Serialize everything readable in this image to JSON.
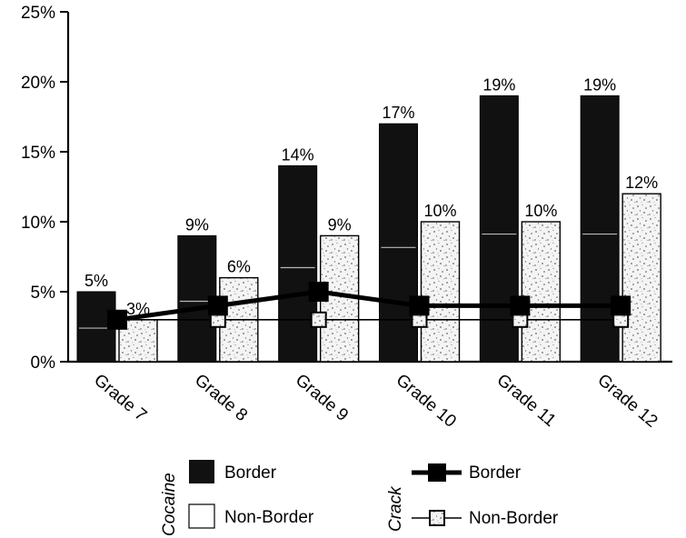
{
  "chart_data": {
    "type": "bar",
    "categories": [
      "Grade 7",
      "Grade 8",
      "Grade 9",
      "Grade 10",
      "Grade 11",
      "Grade 12"
    ],
    "series": [
      {
        "name": "Border",
        "group": "Cocaine",
        "kind": "bar",
        "color": "#111111",
        "values": [
          5,
          9,
          14,
          17,
          19,
          19
        ],
        "labels": [
          "5%",
          "9%",
          "14%",
          "17%",
          "19%",
          "19%"
        ]
      },
      {
        "name": "Non-Border",
        "group": "Cocaine",
        "kind": "bar",
        "color": "#f2f2f2",
        "values": [
          3,
          6,
          9,
          10,
          10,
          12
        ],
        "labels": [
          "3%",
          "6%",
          "9%",
          "10%",
          "10%",
          "12%"
        ]
      },
      {
        "name": "Border",
        "group": "Crack",
        "kind": "line",
        "color": "#000000",
        "values": [
          3,
          4,
          5,
          4,
          4,
          4
        ]
      },
      {
        "name": "Non-Border",
        "group": "Crack",
        "kind": "line",
        "color": "#000000",
        "values": [
          3,
          3,
          3,
          3,
          3,
          3
        ]
      }
    ],
    "yticks": [
      "0%",
      "5%",
      "10%",
      "15%",
      "20%",
      "25%"
    ],
    "ylim": [
      0,
      25
    ],
    "xlabel": "",
    "ylabel": "",
    "legend": {
      "placement": "bottom",
      "groups": [
        "Cocaine",
        "Crack"
      ],
      "cocaine_items": [
        "Border",
        "Non-Border"
      ],
      "crack_items": [
        "Border",
        "Non-Border"
      ]
    },
    "grid": false
  }
}
